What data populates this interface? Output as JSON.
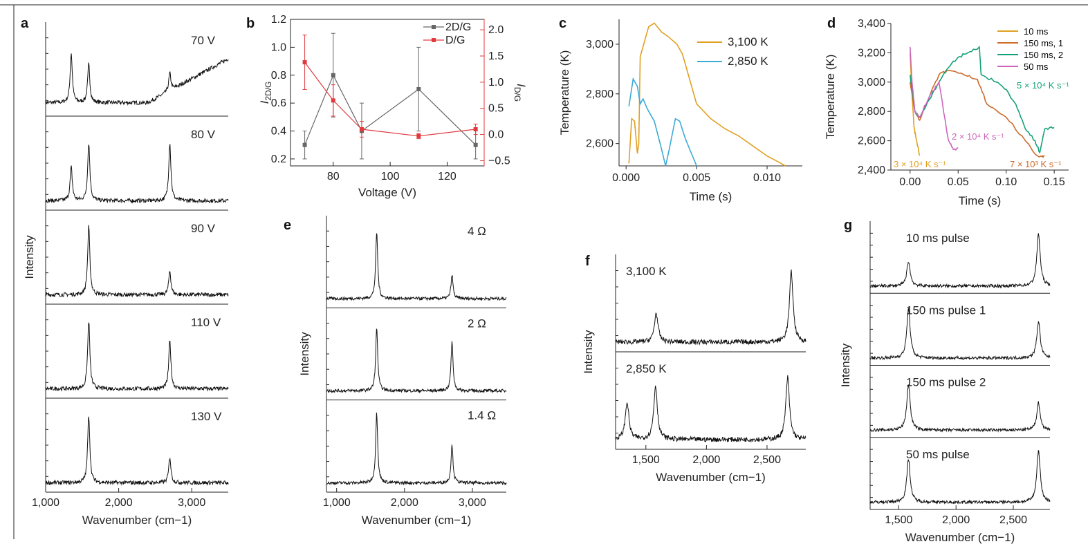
{
  "figure": {
    "colors": {
      "black": "#111111",
      "gray": "#666666",
      "red": "#e0393e",
      "orange": "#e0a020",
      "blue": "#3aaad6",
      "brown": "#cc6a2c",
      "green": "#14a078",
      "pink": "#cc66bb"
    }
  },
  "chart_data": [
    {
      "panel": "a",
      "type": "line",
      "xlabel": "Wavenumber (cm−1)",
      "ylabel": "Intensity",
      "xlim": [
        1000,
        3500
      ],
      "xticks": [
        "1,000",
        "2,000",
        "3,000"
      ],
      "series": [
        {
          "name": "70 V",
          "peaks": [
            {
              "x": 1350,
              "h": 0.62
            },
            {
              "x": 1590,
              "h": 0.48
            },
            {
              "x": 2700,
              "h": 0.22
            }
          ],
          "baseline": "rising"
        },
        {
          "name": "80 V",
          "peaks": [
            {
              "x": 1350,
              "h": 0.42
            },
            {
              "x": 1590,
              "h": 0.72
            },
            {
              "x": 2700,
              "h": 0.72
            }
          ],
          "baseline": "flat"
        },
        {
          "name": "90 V",
          "peaks": [
            {
              "x": 1590,
              "h": 0.85
            },
            {
              "x": 2700,
              "h": 0.3
            }
          ],
          "baseline": "flat"
        },
        {
          "name": "110 V",
          "peaks": [
            {
              "x": 1590,
              "h": 0.85
            },
            {
              "x": 2700,
              "h": 0.6
            }
          ],
          "baseline": "flat"
        },
        {
          "name": "130 V",
          "peaks": [
            {
              "x": 1590,
              "h": 0.85
            },
            {
              "x": 2700,
              "h": 0.32
            }
          ],
          "baseline": "flat"
        }
      ]
    },
    {
      "panel": "b",
      "type": "line",
      "xlabel": "Voltage (V)",
      "ylabel_left": "I",
      "ylabel_left_sub": "2D/G",
      "ylabel_right": "I",
      "ylabel_right_sub": "D/G",
      "xlim": [
        65,
        133
      ],
      "xticks": [
        "80",
        "100",
        "120"
      ],
      "ylim_left": [
        0.15,
        1.2
      ],
      "yticks_left": [
        "0.2",
        "0.4",
        "0.6",
        "0.8",
        "1.0",
        "1.2"
      ],
      "ylim_right": [
        -0.6,
        2.2
      ],
      "yticks_right": [
        "−0.5",
        "0.0",
        "0.5",
        "1.0",
        "1.5",
        "2.0"
      ],
      "series": [
        {
          "name": "2D/G",
          "axis": "left",
          "x": [
            70,
            80,
            90,
            110,
            130
          ],
          "y": [
            0.3,
            0.8,
            0.4,
            0.7,
            0.3
          ],
          "err": [
            0.1,
            0.3,
            0.2,
            0.3,
            0.1
          ]
        },
        {
          "name": "D/G",
          "axis": "right",
          "x": [
            70,
            80,
            90,
            110,
            130
          ],
          "y": [
            1.38,
            0.65,
            0.1,
            -0.03,
            0.1
          ],
          "err": [
            0.52,
            0.3,
            0.15,
            0.05,
            0.1
          ]
        }
      ]
    },
    {
      "panel": "c",
      "type": "line",
      "xlabel": "Time (s)",
      "ylabel": "Temperature (K)",
      "xlim": [
        -0.0005,
        0.0125
      ],
      "xticks": [
        "0.000",
        "0.005",
        "0.010"
      ],
      "ylim": [
        2510,
        3100
      ],
      "yticks": [
        "2,600",
        "2,800",
        "3,000"
      ],
      "series": [
        {
          "name": "3,100 K",
          "x": [
            0.0002,
            0.0004,
            0.0006,
            0.0008,
            0.0009,
            0.001,
            0.0012,
            0.0014,
            0.0016,
            0.002,
            0.0025,
            0.003,
            0.0036,
            0.004,
            0.005,
            0.006,
            0.007,
            0.008,
            0.009,
            0.01,
            0.011,
            0.0113
          ],
          "y": [
            2520,
            2700,
            2690,
            2560,
            2600,
            2950,
            2990,
            3030,
            3070,
            3085,
            3050,
            3030,
            3000,
            2960,
            2760,
            2700,
            2660,
            2630,
            2590,
            2550,
            2520,
            2510
          ]
        },
        {
          "name": "2,850 K",
          "x": [
            0.0002,
            0.0005,
            0.0008,
            0.001,
            0.0012,
            0.0015,
            0.002,
            0.0025,
            0.0028,
            0.003,
            0.0035,
            0.0038,
            0.0042,
            0.005
          ],
          "y": [
            2750,
            2860,
            2830,
            2760,
            2780,
            2740,
            2690,
            2580,
            2510,
            2560,
            2700,
            2690,
            2620,
            2510
          ]
        }
      ]
    },
    {
      "panel": "d",
      "type": "line",
      "xlabel": "Time (s)",
      "ylabel": "Temperature (K)",
      "xlim": [
        -0.02,
        0.165
      ],
      "xticks": [
        "0.00",
        "0.05",
        "0.10",
        "0.15"
      ],
      "ylim": [
        2400,
        3400
      ],
      "yticks": [
        "2,400",
        "2,600",
        "2,800",
        "3,000",
        "3,200",
        "3,400"
      ],
      "series": [
        {
          "name": "10 ms",
          "x": [
            0.0,
            0.002,
            0.004,
            0.006,
            0.008,
            0.01
          ],
          "y": [
            3200,
            2920,
            2700,
            2620,
            2560,
            2500
          ]
        },
        {
          "name": "150 ms, 1",
          "x": [
            0.0,
            0.005,
            0.01,
            0.02,
            0.03,
            0.04,
            0.06,
            0.07,
            0.08,
            0.1,
            0.12,
            0.13,
            0.135,
            0.14
          ],
          "y": [
            3000,
            2800,
            2740,
            2900,
            3050,
            3080,
            3040,
            3020,
            2850,
            2760,
            2600,
            2510,
            2490,
            2500
          ]
        },
        {
          "name": "150 ms, 2",
          "x": [
            0.0,
            0.005,
            0.01,
            0.02,
            0.03,
            0.04,
            0.05,
            0.06,
            0.072,
            0.074,
            0.09,
            0.1,
            0.11,
            0.12,
            0.13,
            0.135,
            0.14,
            0.15
          ],
          "y": [
            3050,
            2800,
            2760,
            2880,
            3000,
            3100,
            3170,
            3200,
            3240,
            3050,
            3000,
            2950,
            2850,
            2680,
            2600,
            2520,
            2680,
            2690
          ]
        },
        {
          "name": "50 ms",
          "x": [
            0.0,
            0.002,
            0.005,
            0.01,
            0.02,
            0.03,
            0.04,
            0.045,
            0.05
          ],
          "y": [
            3240,
            3000,
            2800,
            2760,
            2900,
            3000,
            2600,
            2540,
            2550
          ]
        }
      ],
      "annotations": [
        {
          "text": "5 × 10⁴ K s⁻¹",
          "series": "150 ms, 2"
        },
        {
          "text": "2 × 10⁴ K s⁻¹",
          "series": "50 ms"
        },
        {
          "text": "3 × 10⁴ K s⁻¹",
          "series": "10 ms"
        },
        {
          "text": "7 × 10³ K s⁻¹",
          "series": "150 ms, 1"
        }
      ]
    },
    {
      "panel": "e",
      "type": "line",
      "xlabel": "Wavenumber (cm−1)",
      "ylabel": "Intensity",
      "xlim": [
        850,
        3500
      ],
      "xticks": [
        "1,000",
        "2,000",
        "3,000"
      ],
      "series": [
        {
          "name": "4 Ω",
          "peaks": [
            {
              "x": 1590,
              "h": 0.85
            },
            {
              "x": 2700,
              "h": 0.3
            }
          ]
        },
        {
          "name": "2 Ω",
          "peaks": [
            {
              "x": 1590,
              "h": 0.8
            },
            {
              "x": 2700,
              "h": 0.62
            }
          ]
        },
        {
          "name": "1.4 Ω",
          "peaks": [
            {
              "x": 1590,
              "h": 0.9
            },
            {
              "x": 2700,
              "h": 0.48
            }
          ]
        }
      ]
    },
    {
      "panel": "f",
      "type": "line",
      "xlabel": "Wavenumber (cm−1)",
      "ylabel": "Intensity",
      "xlim": [
        1250,
        2820
      ],
      "xticks": [
        "1,500",
        "2,000",
        "2,500"
      ],
      "series": [
        {
          "name": "3,100 K",
          "peaks": [
            {
              "x": 1585,
              "h": 0.35
            },
            {
              "x": 2700,
              "h": 0.85
            }
          ]
        },
        {
          "name": "2,850 K",
          "peaks": [
            {
              "x": 1345,
              "h": 0.45
            },
            {
              "x": 1580,
              "h": 0.65
            },
            {
              "x": 2670,
              "h": 0.75
            }
          ]
        }
      ]
    },
    {
      "panel": "g",
      "type": "line",
      "xlabel": "Wavenumber (cm−1)",
      "ylabel": "Intensity",
      "xlim": [
        1250,
        2820
      ],
      "xticks": [
        "1,500",
        "2,000",
        "2,500"
      ],
      "series": [
        {
          "name": "10 ms pulse",
          "peaks": [
            {
              "x": 1585,
              "h": 0.4
            },
            {
              "x": 2720,
              "h": 0.85
            }
          ]
        },
        {
          "name": "150 ms pulse 1",
          "peaks": [
            {
              "x": 1585,
              "h": 0.8
            },
            {
              "x": 2720,
              "h": 0.6
            }
          ]
        },
        {
          "name": "150 ms pulse 2",
          "peaks": [
            {
              "x": 1585,
              "h": 0.75
            },
            {
              "x": 2720,
              "h": 0.45
            }
          ]
        },
        {
          "name": "50 ms pulse",
          "peaks": [
            {
              "x": 1585,
              "h": 0.7
            },
            {
              "x": 2720,
              "h": 0.85
            }
          ]
        }
      ]
    }
  ]
}
